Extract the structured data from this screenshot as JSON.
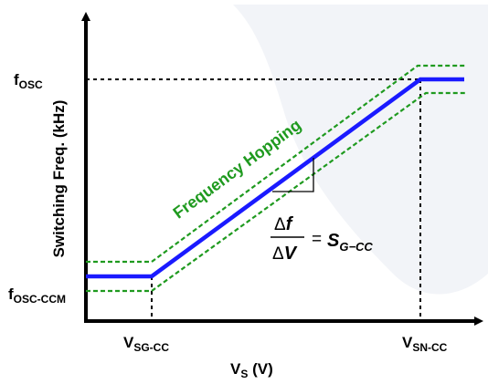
{
  "diagram": {
    "ylabel": "Switching Freq. (kHz)",
    "xlabel_main": "V",
    "xlabel_sub": "S",
    "xlabel_unit": " (V)",
    "y_ticks": [
      {
        "main": "f",
        "sub": "OSC"
      },
      {
        "main": "f",
        "sub": "OSC-CCM"
      }
    ],
    "x_ticks": [
      {
        "main": "V",
        "sub": "SG-CC"
      },
      {
        "main": "V",
        "sub": "SN-CC"
      }
    ],
    "band_label": "Frequency Hopping",
    "equation": {
      "num": "f",
      "den": "V",
      "delta": "Δ",
      "equals": "=",
      "rhs_main": "S",
      "rhs_sub": "G−CC"
    },
    "colors": {
      "curve": "#1a1aff",
      "band": "#1f9a1f",
      "axis": "#000000",
      "background_shape": "#f2f4f8"
    }
  }
}
